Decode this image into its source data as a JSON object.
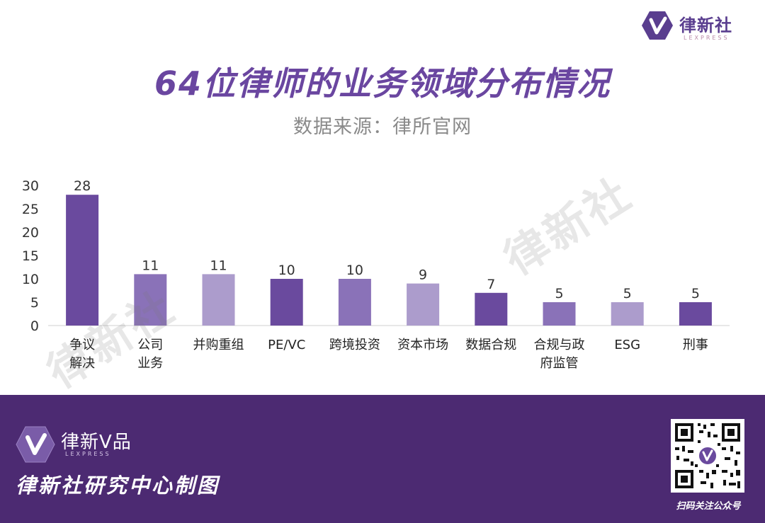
{
  "logo": {
    "brand": "律新社",
    "sub": "LEXPRESS"
  },
  "title": "64位律师的业务领域分布情况",
  "subtitle": "数据来源：律所官网",
  "watermark": "律新社",
  "chart_data": {
    "type": "bar",
    "title": "64位律师的业务领域分布情况",
    "subtitle": "数据来源：律所官网",
    "categories": [
      [
        "争议",
        "解决"
      ],
      [
        "公司",
        "业务"
      ],
      [
        "并购重组"
      ],
      [
        "PE/VC"
      ],
      [
        "跨境投资"
      ],
      [
        "资本市场"
      ],
      [
        "数据合规"
      ],
      [
        "合规与政",
        "府监管"
      ],
      [
        "ESG"
      ],
      [
        "刑事"
      ]
    ],
    "values": [
      28,
      11,
      11,
      10,
      10,
      9,
      7,
      5,
      5,
      5
    ],
    "data_labels": [
      "28",
      "11",
      "11",
      "10",
      "10",
      "9",
      "7",
      "5",
      "5",
      "5"
    ],
    "bar_colors": [
      "#6a4a9e",
      "#8a72b8",
      "#ac9ccc",
      "#6a4a9e",
      "#8a72b8",
      "#ac9ccc",
      "#6a4a9e",
      "#8a72b8",
      "#ac9ccc",
      "#6a4a9e"
    ],
    "ylim": [
      0,
      30
    ],
    "yticks": [
      "0",
      "5",
      "10",
      "15",
      "20",
      "25",
      "30"
    ],
    "grid": false,
    "xlabel": "",
    "ylabel": ""
  },
  "footer": {
    "brand": "律新V品",
    "sub": "LEXPRESS",
    "maker": "律新社研究中心制图",
    "qr_caption": "扫码关注公众号"
  },
  "colors": {
    "title": "#6a46a0",
    "footer_bg": "#4c2a72",
    "bar_dark": "#6a4a9e",
    "bar_mid": "#8a72b8",
    "bar_light": "#ac9ccc"
  }
}
